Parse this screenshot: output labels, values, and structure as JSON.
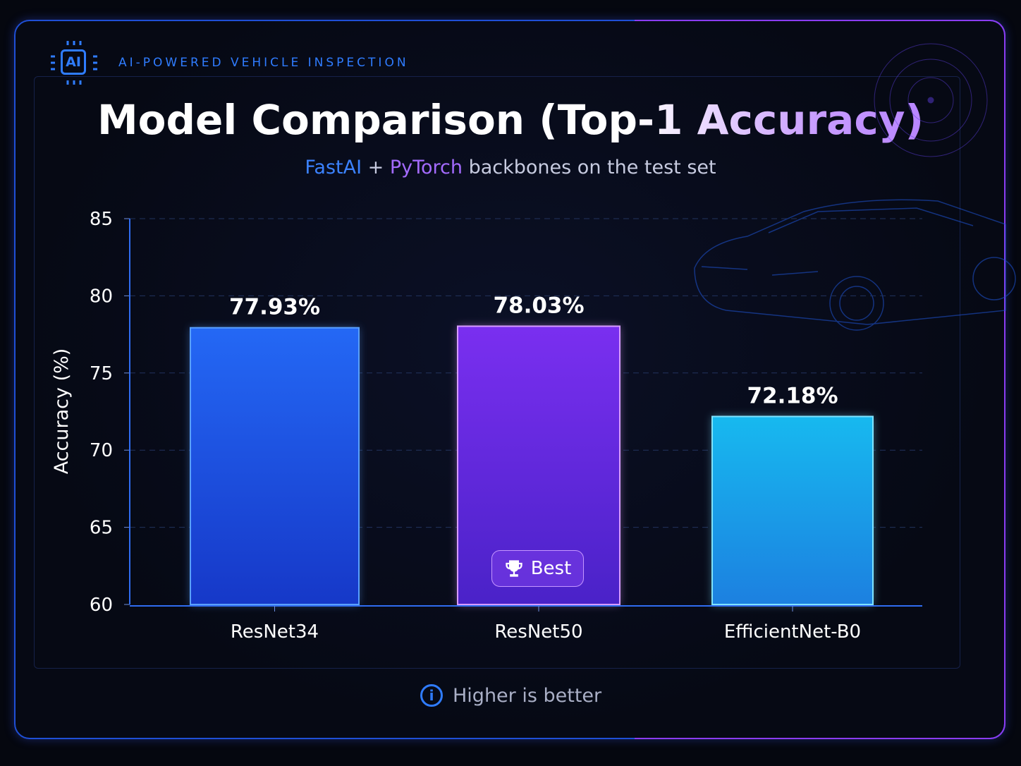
{
  "brand": {
    "icon_label": "AI",
    "tagline": "AI-POWERED VEHICLE INSPECTION"
  },
  "title": "Model Comparison (Top-1 Accuracy)",
  "subtitle": {
    "part1": "FastAI",
    "part2": " + ",
    "part3": "PyTorch",
    "part4": " backbones on the test set"
  },
  "badge": {
    "icon": "trophy-icon",
    "label": "Best"
  },
  "footer": {
    "icon": "info-icon",
    "text": "Higher is better"
  },
  "colors": {
    "resnet34": "#2563f0",
    "resnet50": "#7a2ff0",
    "efficientnet": "#18b4ee",
    "accent_blue": "#2f7cff",
    "accent_purple": "#a46bff"
  },
  "chart_data": {
    "type": "bar",
    "title": "Model Comparison (Top-1 Accuracy)",
    "categories": [
      "ResNet34",
      "ResNet50",
      "EfficientNet-B0"
    ],
    "values": [
      77.93,
      78.03,
      72.18
    ],
    "data_labels": [
      "77.93%",
      "78.03%",
      "72.18%"
    ],
    "xlabel": "",
    "ylabel": "Accuracy (%)",
    "ylim": [
      60,
      85
    ],
    "yticks": [
      "60",
      "65",
      "70",
      "75",
      "80",
      "85"
    ],
    "grid": true,
    "highlight": "ResNet50"
  }
}
